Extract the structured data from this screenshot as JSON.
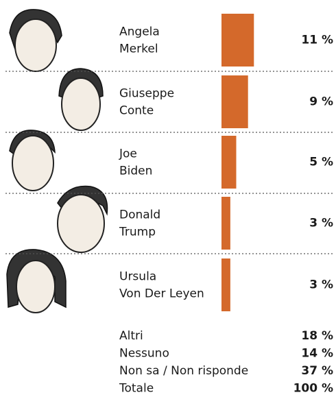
{
  "chart_data": {
    "type": "bar",
    "categories": [
      [
        "Angela",
        "Merkel"
      ],
      [
        "Giuseppe",
        "Conte"
      ],
      [
        "Joe",
        "Biden"
      ],
      [
        "Donald",
        "Trump"
      ],
      [
        "Ursula",
        "Von Der Leyen"
      ]
    ],
    "values": [
      11,
      9,
      5,
      3,
      3
    ],
    "value_labels": [
      "11 %",
      "9 %",
      "5 %",
      "3 %",
      "3 %"
    ],
    "color": "#d4692b"
  },
  "summary": {
    "rows": [
      {
        "label": "Altri",
        "value": "18 %"
      },
      {
        "label": "Nessuno",
        "value": "14 %"
      },
      {
        "label": "Non sa / Non risponde",
        "value": "37 %"
      },
      {
        "label": "Totale",
        "value": "100 %"
      }
    ]
  }
}
